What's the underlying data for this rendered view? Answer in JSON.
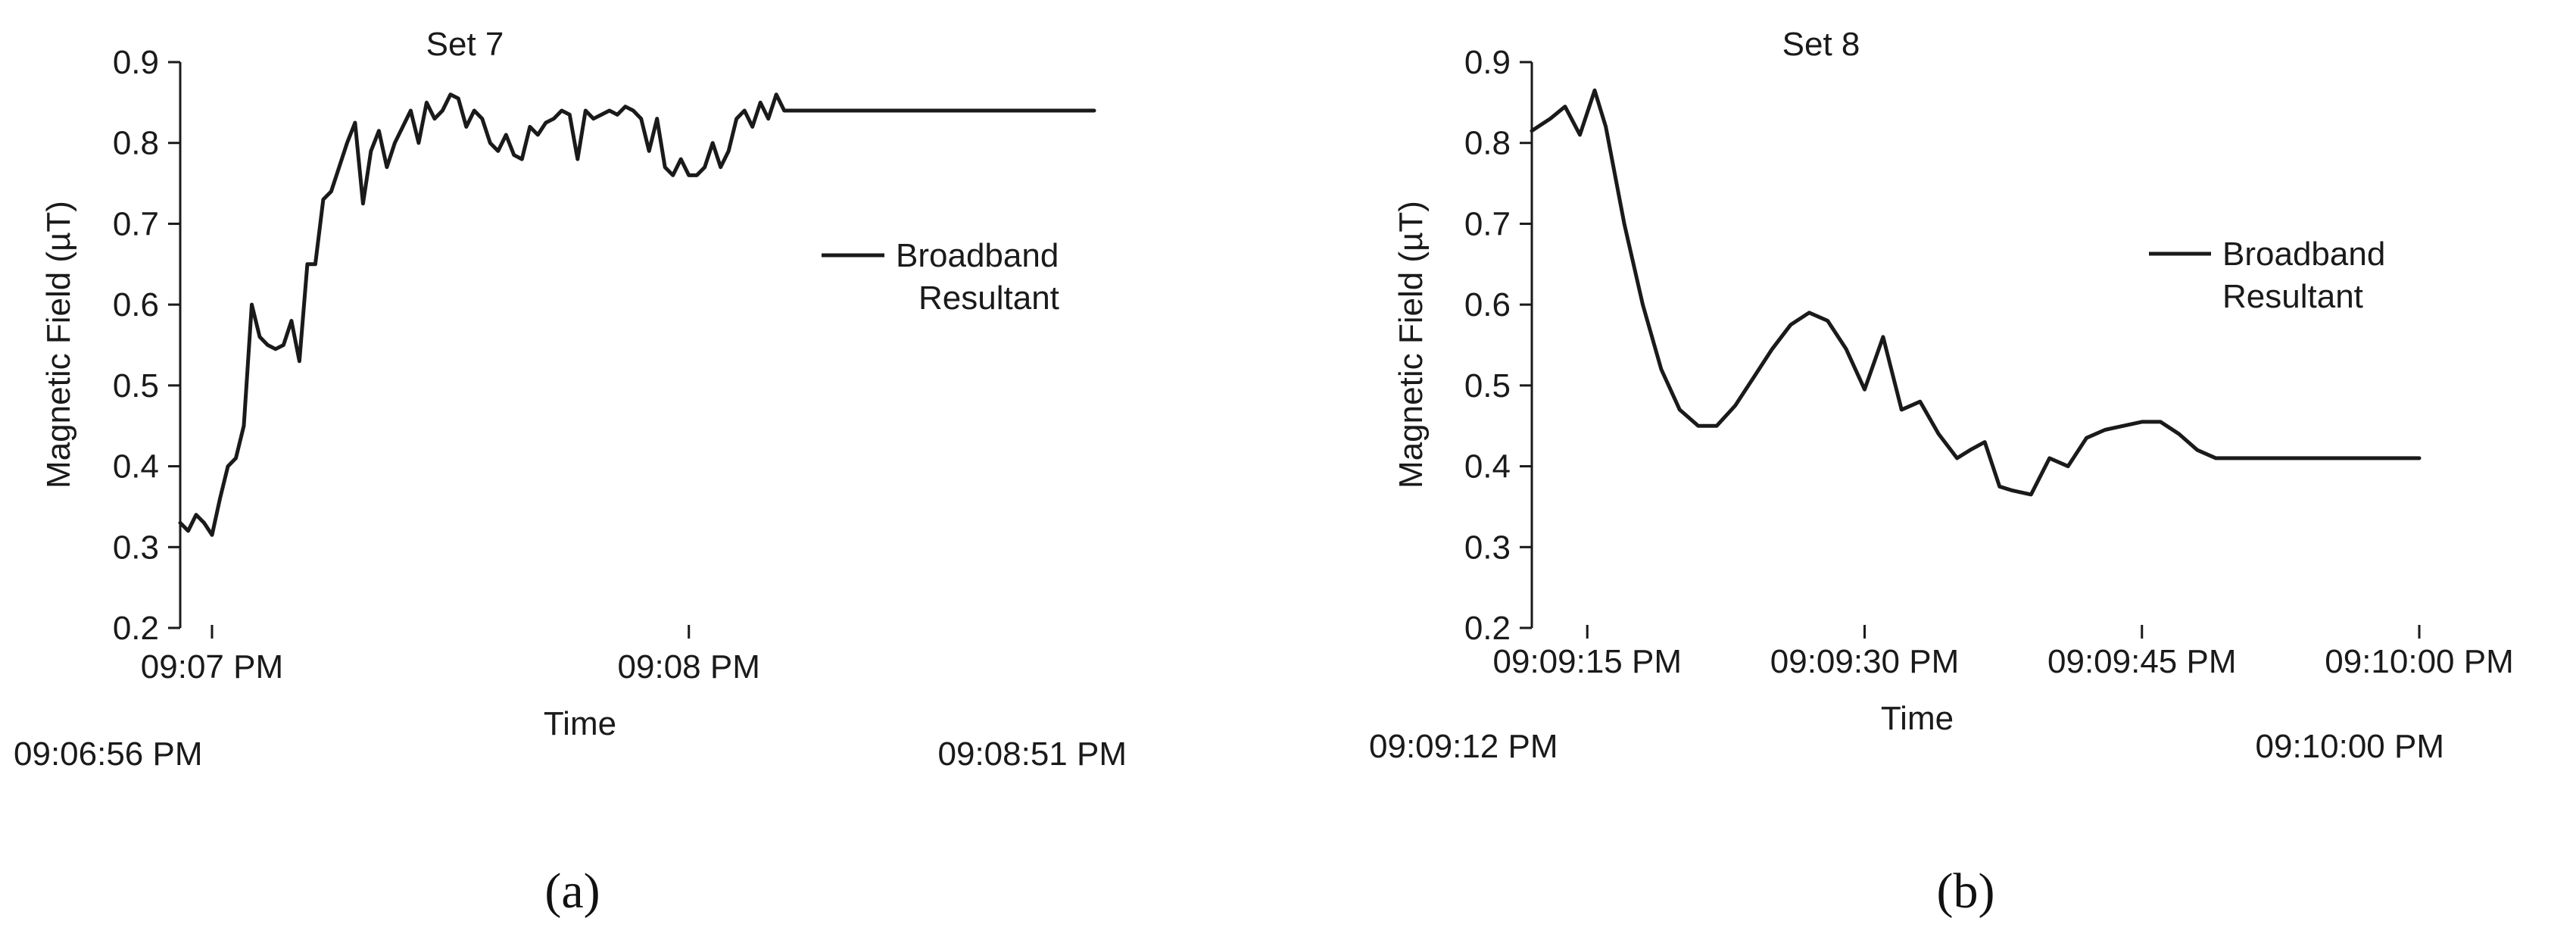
{
  "chart_data": [
    {
      "panel_label": "(a)",
      "type": "line",
      "title": "Set 7",
      "xlabel": "Time",
      "ylabel": "Magnetic Field (µT)",
      "ylim": [
        0.2,
        0.9
      ],
      "yticks": [
        "0.2",
        "0.3",
        "0.4",
        "0.5",
        "0.6",
        "0.7",
        "0.8",
        "0.9"
      ],
      "xlim_seconds_after_start": [
        0,
        115
      ],
      "xticks": [
        {
          "label": "09:07 PM",
          "t": 4
        },
        {
          "label": "09:08 PM",
          "t": 64
        }
      ],
      "start_label": "09:06:56 PM",
      "end_label": "09:08:51 PM",
      "legend": [
        "Broadband",
        "Resultant"
      ],
      "legend_position": "right",
      "series": [
        {
          "name": "Broadband Resultant",
          "color": "#1a1a1a",
          "x": [
            0,
            1,
            2,
            3,
            4,
            5,
            6,
            7,
            8,
            9,
            10,
            11,
            12,
            13,
            14,
            15,
            16,
            17,
            18,
            19,
            20,
            21,
            22,
            23,
            24,
            25,
            26,
            27,
            28,
            29,
            30,
            31,
            32,
            33,
            34,
            35,
            36,
            37,
            38,
            39,
            40,
            41,
            42,
            43,
            44,
            45,
            46,
            47,
            48,
            49,
            50,
            51,
            52,
            53,
            54,
            55,
            56,
            57,
            58,
            59,
            60,
            61,
            62,
            63,
            64,
            65,
            66,
            67,
            68,
            69,
            70,
            71,
            72,
            73,
            74,
            75,
            76,
            77,
            78,
            79,
            80,
            81,
            82,
            83,
            84,
            85,
            86,
            87,
            88,
            89,
            90,
            91,
            92,
            93,
            94,
            95,
            96,
            97,
            98,
            99,
            100,
            101,
            102,
            103,
            104,
            105,
            106,
            107,
            108,
            109,
            110,
            111,
            112,
            113,
            114,
            115
          ],
          "y": [
            0.33,
            0.32,
            0.34,
            0.33,
            0.315,
            0.36,
            0.4,
            0.41,
            0.45,
            0.6,
            0.56,
            0.55,
            0.545,
            0.55,
            0.58,
            0.53,
            0.65,
            0.65,
            0.73,
            0.74,
            0.77,
            0.8,
            0.825,
            0.725,
            0.79,
            0.815,
            0.77,
            0.8,
            0.82,
            0.84,
            0.8,
            0.85,
            0.83,
            0.84,
            0.86,
            0.855,
            0.82,
            0.84,
            0.83,
            0.8,
            0.79,
            0.81,
            0.785,
            0.78,
            0.82,
            0.81,
            0.825,
            0.83,
            0.84,
            0.835,
            0.78,
            0.84,
            0.83,
            0.835,
            0.84,
            0.835,
            0.845,
            0.84,
            0.83,
            0.79,
            0.83,
            0.77,
            0.76,
            0.78,
            0.76,
            0.76,
            0.77,
            0.8,
            0.77,
            0.79,
            0.83,
            0.84,
            0.82,
            0.85,
            0.83,
            0.86,
            0.84,
            0.84,
            0.84,
            0.84,
            0.84,
            0.84,
            0.84,
            0.84,
            0.84,
            0.84,
            0.84,
            0.84,
            0.84,
            0.84,
            0.84,
            0.84,
            0.84,
            0.84,
            0.84,
            0.84,
            0.84,
            0.84,
            0.84,
            0.84,
            0.84,
            0.84,
            0.84,
            0.84,
            0.84,
            0.84,
            0.84,
            0.84,
            0.84,
            0.84,
            0.84,
            0.84,
            0.84,
            0.84,
            0.84,
            0.84
          ]
        }
      ]
    },
    {
      "panel_label": "(b)",
      "type": "line",
      "title": "Set 8",
      "xlabel": "Time",
      "ylabel": "Magnetic Field (µT)",
      "ylim": [
        0.2,
        0.9
      ],
      "yticks": [
        "0.2",
        "0.3",
        "0.4",
        "0.5",
        "0.6",
        "0.7",
        "0.8",
        "0.9"
      ],
      "xlim_seconds_after_start": [
        0,
        48
      ],
      "xticks": [
        {
          "label": "09:09:15 PM",
          "t": 3
        },
        {
          "label": "09:09:30 PM",
          "t": 18
        },
        {
          "label": "09:09:45 PM",
          "t": 33
        },
        {
          "label": "09:10:00 PM",
          "t": 48
        }
      ],
      "start_label": "09:09:12 PM",
      "end_label": "09:10:00 PM",
      "legend": [
        "Broadband",
        "Resultant"
      ],
      "legend_position": "right",
      "series": [
        {
          "name": "Broadband Resultant",
          "color": "#1a1a1a",
          "x": [
            0,
            1,
            1.8,
            2.6,
            3.4,
            4,
            5,
            6,
            7,
            8,
            9,
            10,
            11,
            12,
            13,
            14,
            15,
            16,
            17,
            18,
            19,
            20,
            21,
            22,
            23,
            23.7,
            24.5,
            25.3,
            26,
            27,
            28,
            29,
            30,
            31,
            32,
            33,
            34,
            35,
            36,
            37,
            38,
            39,
            40,
            41,
            42,
            43,
            44,
            45,
            46,
            47,
            48
          ],
          "y": [
            0.815,
            0.83,
            0.845,
            0.81,
            0.865,
            0.82,
            0.7,
            0.6,
            0.52,
            0.47,
            0.45,
            0.45,
            0.475,
            0.51,
            0.545,
            0.575,
            0.59,
            0.58,
            0.545,
            0.495,
            0.56,
            0.47,
            0.48,
            0.44,
            0.41,
            0.42,
            0.43,
            0.375,
            0.37,
            0.365,
            0.41,
            0.4,
            0.435,
            0.445,
            0.45,
            0.455,
            0.455,
            0.44,
            0.42,
            0.41,
            0.41,
            0.41,
            0.41,
            0.41,
            0.41,
            0.41,
            0.41,
            0.41,
            0.41,
            0.41,
            0.41
          ]
        }
      ]
    }
  ]
}
